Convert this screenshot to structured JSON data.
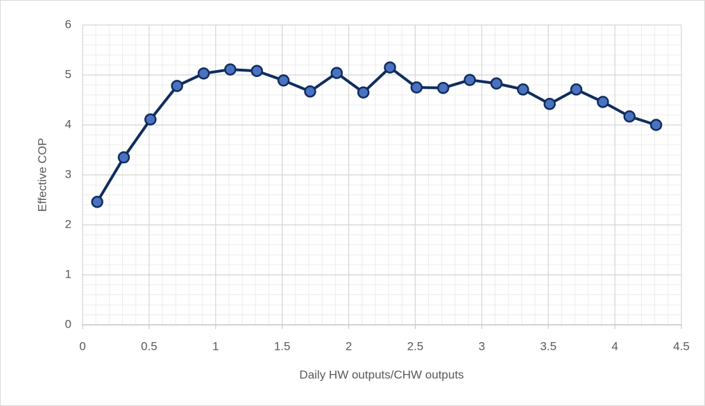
{
  "chart_data": {
    "type": "line",
    "x_label": "Daily HW outputs/CHW outputs",
    "y_label": "Effective COP",
    "x": [
      0.11,
      0.31,
      0.51,
      0.71,
      0.91,
      1.11,
      1.31,
      1.51,
      1.71,
      1.91,
      2.11,
      2.31,
      2.51,
      2.71,
      2.91,
      3.11,
      3.31,
      3.51,
      3.71,
      3.91,
      4.11,
      4.31
    ],
    "series": [
      {
        "name": "Effective COP",
        "color": "#0f2c5e",
        "marker_color": "#4a72c0",
        "values": [
          2.46,
          3.35,
          4.11,
          4.78,
          5.03,
          5.11,
          5.08,
          4.89,
          4.67,
          5.04,
          4.65,
          5.15,
          4.75,
          4.74,
          4.9,
          4.83,
          4.71,
          4.42,
          4.71,
          4.46,
          4.17,
          4.0
        ]
      }
    ],
    "xlim": [
      0,
      4.5
    ],
    "xticks": [
      0,
      0.5,
      1,
      1.5,
      2,
      2.5,
      3,
      3.5,
      4,
      4.5
    ],
    "ylim": [
      0,
      6
    ],
    "yticks": [
      0,
      1,
      2,
      3,
      4,
      5,
      6
    ],
    "grid": true,
    "minor_grid": true
  }
}
